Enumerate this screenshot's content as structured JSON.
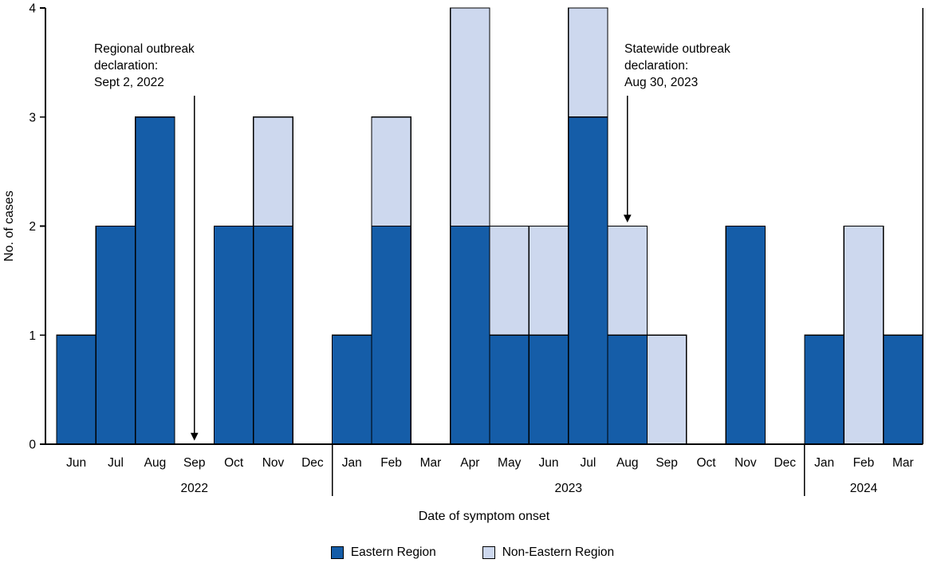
{
  "chart_data": {
    "type": "bar",
    "stacked": true,
    "title": "",
    "xlabel": "Date of symptom onset",
    "ylabel": "No. of cases",
    "ylim": [
      0,
      4
    ],
    "yticks": [
      0,
      1,
      2,
      3,
      4
    ],
    "grid": false,
    "legend_position": "bottom",
    "categories": [
      "Jun",
      "Jul",
      "Aug",
      "Sep",
      "Oct",
      "Nov",
      "Dec",
      "Jan",
      "Feb",
      "Mar",
      "Apr",
      "May",
      "Jun",
      "Jul",
      "Aug",
      "Sep",
      "Oct",
      "Nov",
      "Dec",
      "Jan",
      "Feb",
      "Mar"
    ],
    "year_groups": [
      {
        "label": "2022",
        "start": 0,
        "end": 6
      },
      {
        "label": "2023",
        "start": 7,
        "end": 18
      },
      {
        "label": "2024",
        "start": 19,
        "end": 21
      }
    ],
    "series": [
      {
        "name": "Eastern Region",
        "color": "#155da8",
        "values": [
          1,
          2,
          3,
          0,
          2,
          2,
          0,
          1,
          2,
          0,
          2,
          1,
          1,
          3,
          1,
          0,
          0,
          2,
          0,
          1,
          0,
          1
        ]
      },
      {
        "name": "Non-Eastern Region",
        "color": "#cdd8ee",
        "values": [
          0,
          0,
          0,
          0,
          0,
          1,
          0,
          0,
          1,
          0,
          2,
          1,
          1,
          1,
          1,
          1,
          0,
          0,
          0,
          0,
          2,
          0
        ]
      }
    ],
    "annotations": [
      {
        "lines": [
          "Regional outbreak",
          "declaration:",
          "Sept 2, 2022"
        ],
        "arrow_month_index": 3,
        "arrow_to_value": 0
      },
      {
        "lines": [
          "Statewide outbreak",
          "declaration:",
          "Aug 30, 2023"
        ],
        "arrow_month_index": 14,
        "arrow_to_value": 2
      }
    ],
    "legend": [
      {
        "label": "Eastern Region",
        "color": "#155da8"
      },
      {
        "label": "Non-Eastern Region",
        "color": "#cdd8ee"
      }
    ]
  }
}
